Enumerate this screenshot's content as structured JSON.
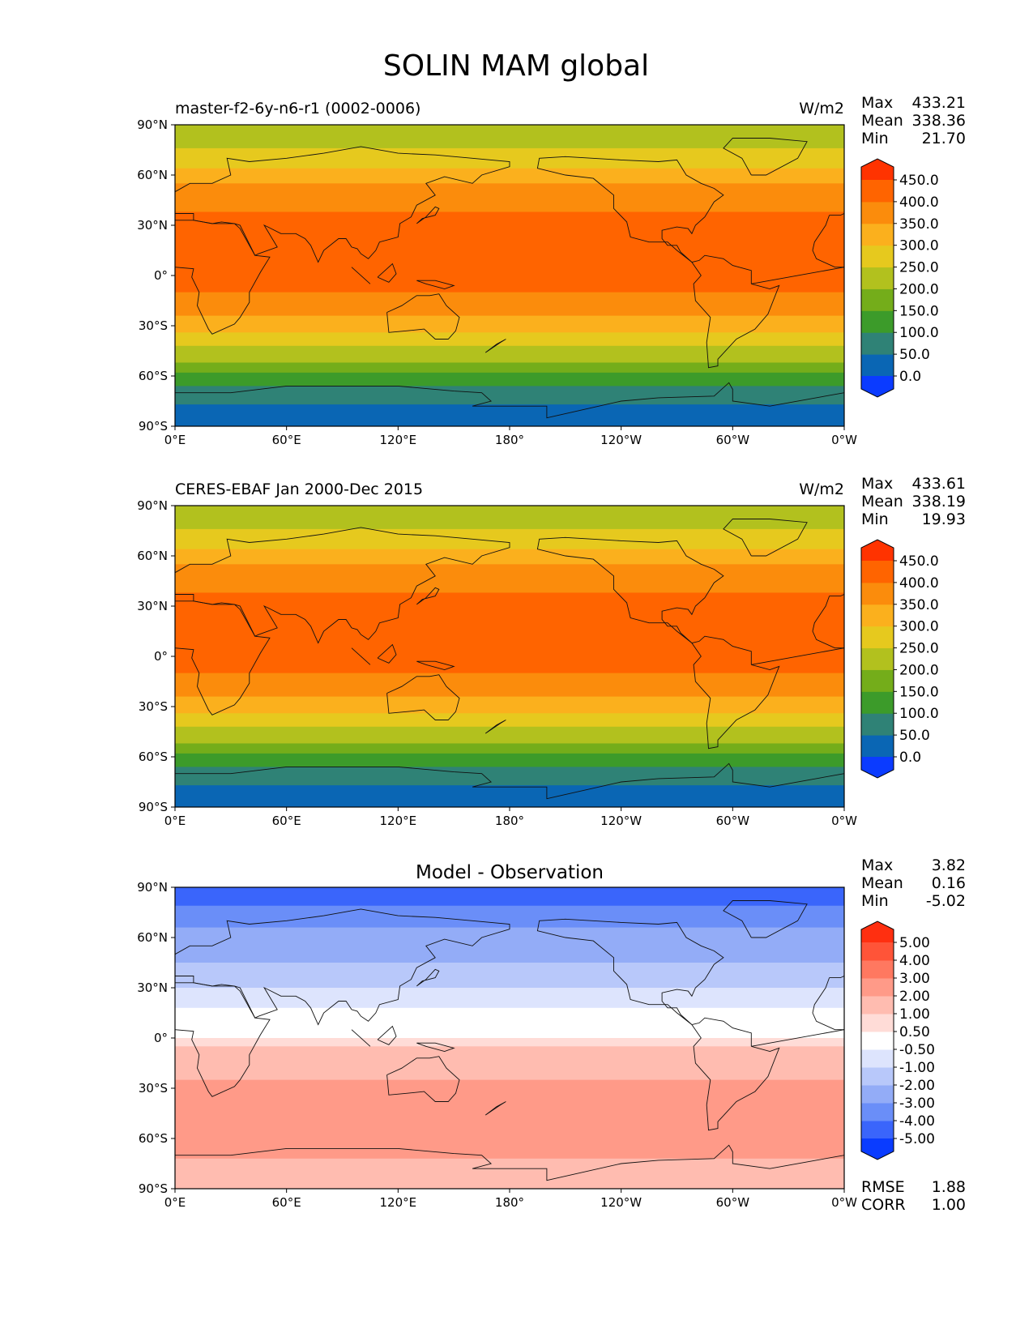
{
  "figure": {
    "title": "SOLIN MAM global"
  },
  "axes": {
    "lat_labels": [
      "90°N",
      "60°N",
      "30°N",
      "0°",
      "30°S",
      "60°S",
      "90°S"
    ],
    "lon_labels": [
      "0°E",
      "60°E",
      "120°E",
      "180°",
      "120°W",
      "60°W",
      "0°W"
    ]
  },
  "panels": [
    {
      "title": "master-f2-6y-n6-r1 (0002-0006)",
      "units": "W/m2",
      "stats": [
        {
          "label": "Max",
          "value": "433.21"
        },
        {
          "label": "Mean",
          "value": "338.36"
        },
        {
          "label": "Min",
          "value": "21.70"
        }
      ],
      "colorbar": {
        "ticks": [
          "450.0",
          "400.0",
          "350.0",
          "300.0",
          "250.0",
          "200.0",
          "150.0",
          "100.0",
          "50.0",
          "0.0"
        ],
        "colors": [
          "#0b3bff",
          "#0a66b4",
          "#2f8276",
          "#3c9b2a",
          "#74ad1a",
          "#b2c11e",
          "#e6c91e",
          "#fbb01d",
          "#fb8c0c",
          "#ff6400",
          "#ff3300"
        ]
      }
    },
    {
      "title": "CERES-EBAF Jan 2000-Dec 2015",
      "units": "W/m2",
      "stats": [
        {
          "label": "Max",
          "value": "433.61"
        },
        {
          "label": "Mean",
          "value": "338.19"
        },
        {
          "label": "Min",
          "value": "19.93"
        }
      ],
      "colorbar": {
        "ticks": [
          "450.0",
          "400.0",
          "350.0",
          "300.0",
          "250.0",
          "200.0",
          "150.0",
          "100.0",
          "50.0",
          "0.0"
        ],
        "colors": [
          "#0b3bff",
          "#0a66b4",
          "#2f8276",
          "#3c9b2a",
          "#74ad1a",
          "#b2c11e",
          "#e6c91e",
          "#fbb01d",
          "#fb8c0c",
          "#ff6400",
          "#ff3300"
        ]
      }
    },
    {
      "title": "Model - Observation",
      "units": "",
      "stats": [
        {
          "label": "Max",
          "value": "3.82"
        },
        {
          "label": "Mean",
          "value": "0.16"
        },
        {
          "label": "Min",
          "value": "-5.02"
        }
      ],
      "extra_stats": [
        {
          "label": "RMSE",
          "value": "1.88"
        },
        {
          "label": "CORR",
          "value": "1.00"
        }
      ],
      "colorbar": {
        "ticks": [
          "5.00",
          "4.00",
          "3.00",
          "2.00",
          "1.00",
          "0.50",
          "-0.50",
          "-1.00",
          "-2.00",
          "-3.00",
          "-4.00",
          "-5.00"
        ],
        "colors": [
          "#0a3cff",
          "#3a65fb",
          "#6a8ef8",
          "#93acf7",
          "#b8c8fa",
          "#dde4fd",
          "#ffffff",
          "#ffdcd7",
          "#ffbcb0",
          "#ff9a88",
          "#ff7860",
          "#ff5438",
          "#ff2f10"
        ]
      }
    }
  ],
  "field_bands": {
    "climatology": [
      {
        "lat_top": 90,
        "lat_bottom": 76,
        "value": 225
      },
      {
        "lat_top": 76,
        "lat_bottom": 64,
        "value": 275
      },
      {
        "lat_top": 64,
        "lat_bottom": 55,
        "value": 325
      },
      {
        "lat_top": 55,
        "lat_bottom": 38,
        "value": 375
      },
      {
        "lat_top": 38,
        "lat_bottom": -10,
        "value": 425
      },
      {
        "lat_top": -10,
        "lat_bottom": -24,
        "value": 375
      },
      {
        "lat_top": -24,
        "lat_bottom": -34,
        "value": 325
      },
      {
        "lat_top": -34,
        "lat_bottom": -42,
        "value": 275
      },
      {
        "lat_top": -42,
        "lat_bottom": -52,
        "value": 225
      },
      {
        "lat_top": -52,
        "lat_bottom": -58,
        "value": 175
      },
      {
        "lat_top": -58,
        "lat_bottom": -66,
        "value": 125
      },
      {
        "lat_top": -66,
        "lat_bottom": -77,
        "value": 75
      },
      {
        "lat_top": -77,
        "lat_bottom": -90,
        "value": 25
      }
    ],
    "difference": [
      {
        "lat_top": 90,
        "lat_bottom": 79,
        "value": -4.5
      },
      {
        "lat_top": 79,
        "lat_bottom": 66,
        "value": -3.5
      },
      {
        "lat_top": 66,
        "lat_bottom": 45,
        "value": -2.5
      },
      {
        "lat_top": 45,
        "lat_bottom": 30,
        "value": -1.5
      },
      {
        "lat_top": 30,
        "lat_bottom": 18,
        "value": -0.75
      },
      {
        "lat_top": 18,
        "lat_bottom": 0,
        "value": 0
      },
      {
        "lat_top": 0,
        "lat_bottom": -5,
        "value": 0.75
      },
      {
        "lat_top": -5,
        "lat_bottom": -25,
        "value": 1.5
      },
      {
        "lat_top": -25,
        "lat_bottom": -72,
        "value": 2.5
      },
      {
        "lat_top": -72,
        "lat_bottom": -90,
        "value": 1.5
      }
    ]
  }
}
